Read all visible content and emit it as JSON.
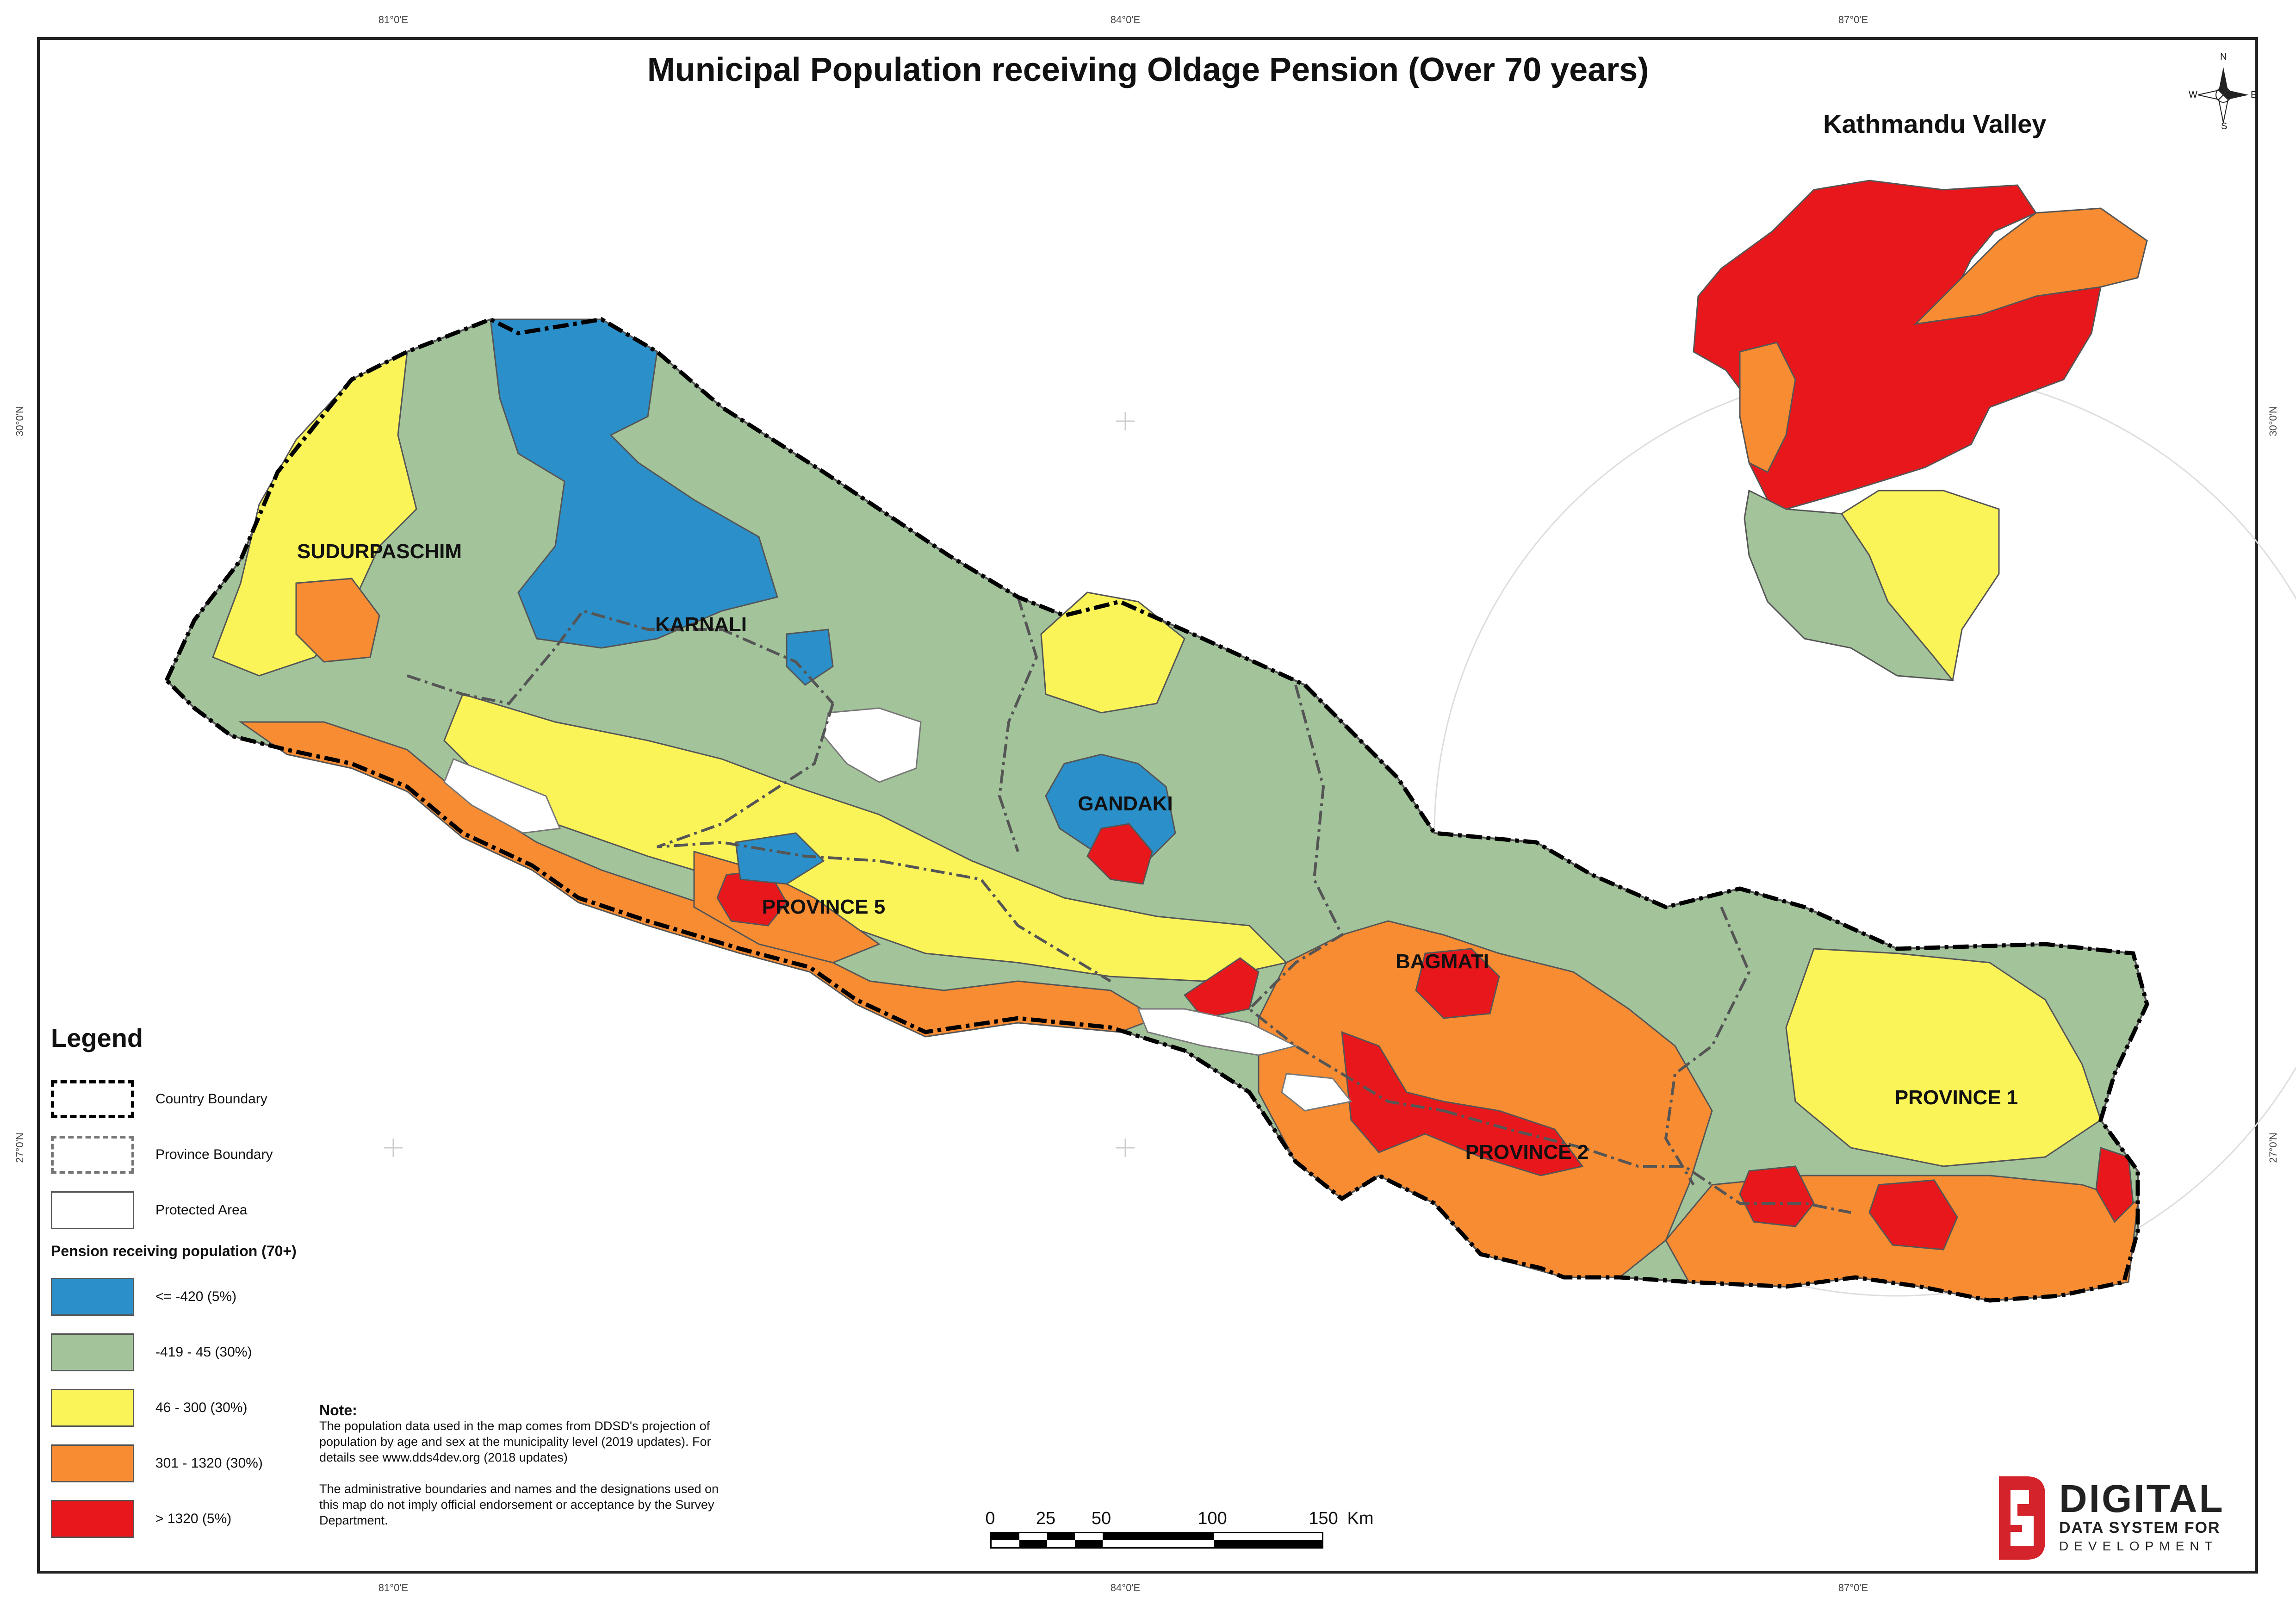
{
  "title": "Municipal Population receiving Oldage Pension (Over 70 years)",
  "inset_title": "Kathmandu Valley",
  "grid_labels": {
    "top": [
      "81°0'E",
      "84°0'E",
      "87°0'E"
    ],
    "bottom": [
      "81°0'E",
      "84°0'E",
      "87°0'E"
    ],
    "left": [
      "30°0'N",
      "27°0'N"
    ],
    "right": [
      "30°0'N",
      "27°0'N"
    ]
  },
  "compass": {
    "n": "N",
    "s": "S",
    "e": "E",
    "w": "W"
  },
  "regions": [
    {
      "name": "SUDURPASCHIM"
    },
    {
      "name": "KARNALI"
    },
    {
      "name": "GANDAKI"
    },
    {
      "name": "PROVINCE 5"
    },
    {
      "name": "BAGMATI"
    },
    {
      "name": "PROVINCE 2"
    },
    {
      "name": "PROVINCE 1"
    }
  ],
  "legend": {
    "title": "Legend",
    "boundaries": [
      {
        "label": "Country Boundary"
      },
      {
        "label": "Province Boundary"
      },
      {
        "label": "Protected Area"
      }
    ],
    "classes_title": "Pension receiving population (70+)",
    "classes": [
      {
        "label": "<= -420 (5%)",
        "color": "#2b8fc9"
      },
      {
        "label": "-419 - 45 (30%)",
        "color": "#a3c49b"
      },
      {
        "label": "46 - 300 (30%)",
        "color": "#fbf459"
      },
      {
        "label": "301 - 1320 (30%)",
        "color": "#f78c32"
      },
      {
        "label": "> 1320 (5%)",
        "color": "#e8171b"
      }
    ]
  },
  "note": {
    "heading": "Note:",
    "paragraph1": "The population data used in the map comes from DDSD's projection of population by age and sex at the municipality level (2019 updates). For details see www.dds4dev.org (2018 updates)",
    "paragraph2": "The administrative boundaries and names and the designations used on this map do not imply official endorsement or acceptance by the Survey Department."
  },
  "scale": {
    "ticks": [
      "0",
      "25",
      "50",
      "100",
      "150"
    ],
    "unit": "Km"
  },
  "logo": {
    "line1": "DIGITAL",
    "line2": "DATA SYSTEM FOR",
    "line3": "DEVELOPMENT"
  },
  "colors": {
    "blue": "#2b8fc9",
    "green": "#a3c49b",
    "yellow": "#fbf459",
    "orange": "#f78c32",
    "red": "#e8171b",
    "logo_red": "#d4232a"
  }
}
